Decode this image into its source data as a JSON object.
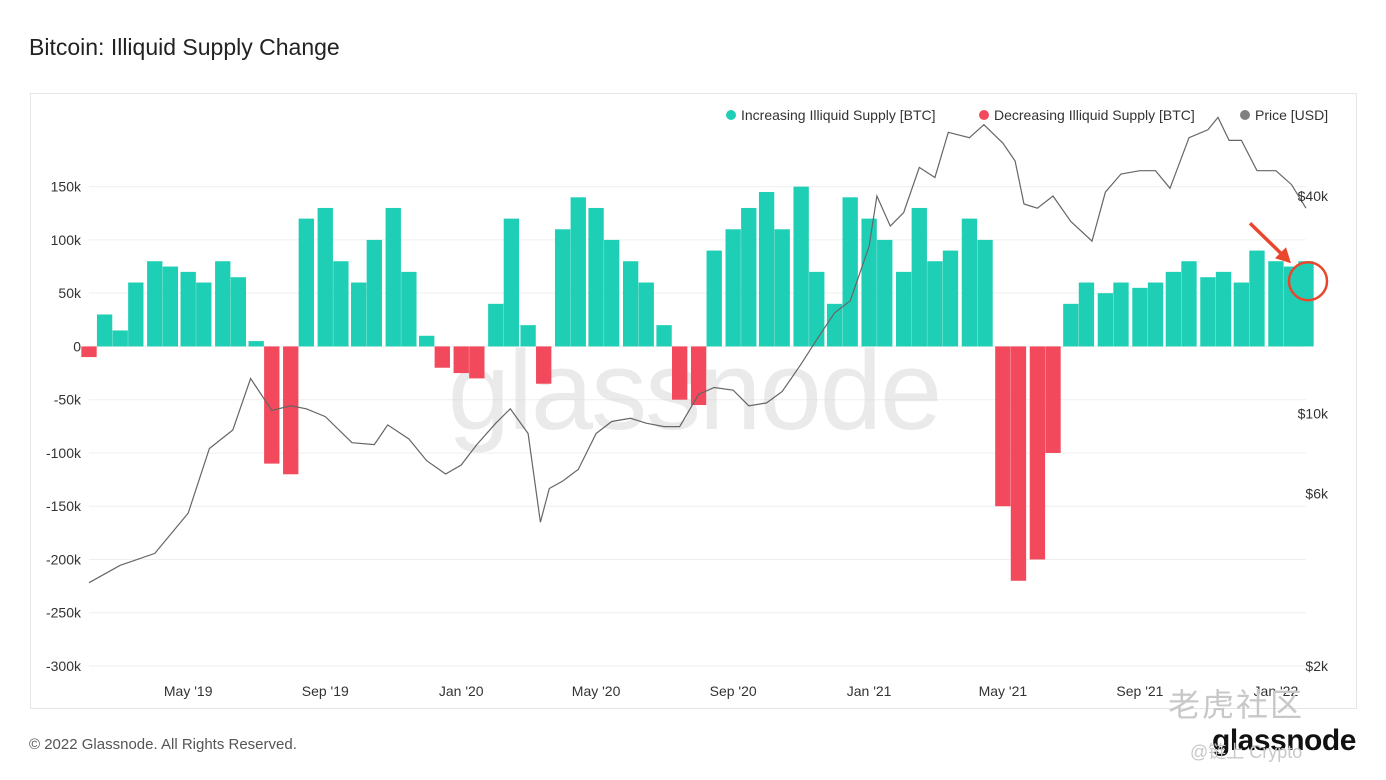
{
  "title": "Bitcoin: Illiquid Supply Change",
  "footer": "© 2022 Glassnode. All Rights Reserved.",
  "brand": "glassnode",
  "watermark": {
    "text": "glassnode",
    "cn_text": "老虎社区",
    "handle": "@链上 Crypto"
  },
  "colors": {
    "increase": "#1fcfb5",
    "decrease": "#f2495c",
    "price": "#666666",
    "annotation": "#e8472e"
  },
  "chart_data": {
    "type": "bar",
    "title": "Bitcoin: Illiquid Supply Change",
    "legend": {
      "placement": "top-right",
      "items": [
        {
          "label": "Increasing Illiquid Supply [BTC]",
          "color": "#1fcfb5"
        },
        {
          "label": "Decreasing Illiquid Supply [BTC]",
          "color": "#f2495c"
        },
        {
          "label": "Price [USD]",
          "color": "#808080"
        }
      ]
    },
    "x_ticks": [
      "May '19",
      "Sep '19",
      "Jan '20",
      "May '20",
      "Sep '20",
      "Jan '21",
      "May '21",
      "Sep '21",
      "Jan '22"
    ],
    "x_range": [
      "2019-02-01",
      "2022-01-28"
    ],
    "y_left": {
      "ticks": [
        "150k",
        "100k",
        "50k",
        "0",
        "-50k",
        "-100k",
        "-150k",
        "-200k",
        "-250k",
        "-300k"
      ],
      "tick_values": [
        150000,
        100000,
        50000,
        0,
        -50000,
        -100000,
        -150000,
        -200000,
        -250000,
        -300000
      ],
      "range": [
        -300000,
        160000
      ]
    },
    "y_right": {
      "ticks": [
        "$40k",
        "$10k",
        "$6k",
        "$2k"
      ],
      "tick_values": [
        40000,
        10000,
        6000,
        2000
      ],
      "scale": "log",
      "range": [
        2000,
        55000
      ]
    },
    "grid": true,
    "supply_change_series": {
      "name": "Illiquid Supply Change",
      "x": [
        "2019-02-01",
        "2019-02-15",
        "2019-03-01",
        "2019-03-15",
        "2019-04-01",
        "2019-04-15",
        "2019-05-01",
        "2019-05-15",
        "2019-06-01",
        "2019-06-15",
        "2019-07-01",
        "2019-07-15",
        "2019-08-01",
        "2019-08-15",
        "2019-09-01",
        "2019-09-15",
        "2019-10-01",
        "2019-10-15",
        "2019-11-01",
        "2019-11-15",
        "2019-12-01",
        "2019-12-15",
        "2020-01-01",
        "2020-01-15",
        "2020-02-01",
        "2020-02-15",
        "2020-03-01",
        "2020-03-15",
        "2020-04-01",
        "2020-04-15",
        "2020-05-01",
        "2020-05-15",
        "2020-06-01",
        "2020-06-15",
        "2020-07-01",
        "2020-07-15",
        "2020-08-01",
        "2020-08-15",
        "2020-09-01",
        "2020-09-15",
        "2020-10-01",
        "2020-10-15",
        "2020-11-01",
        "2020-11-15",
        "2020-12-01",
        "2020-12-15",
        "2021-01-01",
        "2021-01-15",
        "2021-02-01",
        "2021-02-15",
        "2021-03-01",
        "2021-03-15",
        "2021-04-01",
        "2021-04-15",
        "2021-05-01",
        "2021-05-15",
        "2021-06-01",
        "2021-06-15",
        "2021-07-01",
        "2021-07-15",
        "2021-08-01",
        "2021-08-15",
        "2021-09-01",
        "2021-09-15",
        "2021-10-01",
        "2021-10-15",
        "2021-11-01",
        "2021-11-15",
        "2021-12-01",
        "2021-12-15",
        "2022-01-01",
        "2022-01-15",
        "2022-01-28"
      ],
      "values": [
        -10000,
        30000,
        15000,
        60000,
        80000,
        75000,
        70000,
        60000,
        80000,
        65000,
        5000,
        -110000,
        -120000,
        120000,
        130000,
        80000,
        60000,
        100000,
        130000,
        70000,
        10000,
        -20000,
        -25000,
        -30000,
        40000,
        120000,
        20000,
        -35000,
        110000,
        140000,
        130000,
        100000,
        80000,
        60000,
        20000,
        -50000,
        -55000,
        90000,
        110000,
        130000,
        145000,
        110000,
        150000,
        70000,
        40000,
        140000,
        120000,
        100000,
        70000,
        130000,
        80000,
        90000,
        120000,
        100000,
        -150000,
        -220000,
        -200000,
        -100000,
        40000,
        60000,
        50000,
        60000,
        55000,
        60000,
        70000,
        80000,
        65000,
        70000,
        60000,
        90000,
        80000,
        75000,
        80000
      ]
    },
    "price_series": {
      "name": "Price [USD]",
      "x": [
        "2019-02-01",
        "2019-03-01",
        "2019-04-01",
        "2019-05-01",
        "2019-05-20",
        "2019-06-10",
        "2019-06-26",
        "2019-07-15",
        "2019-08-01",
        "2019-08-15",
        "2019-09-01",
        "2019-09-25",
        "2019-10-15",
        "2019-10-27",
        "2019-11-15",
        "2019-12-01",
        "2019-12-18",
        "2020-01-01",
        "2020-01-15",
        "2020-02-01",
        "2020-02-14",
        "2020-03-01",
        "2020-03-12",
        "2020-03-20",
        "2020-04-01",
        "2020-04-15",
        "2020-05-01",
        "2020-05-15",
        "2020-06-01",
        "2020-06-15",
        "2020-07-01",
        "2020-07-15",
        "2020-08-01",
        "2020-08-15",
        "2020-09-01",
        "2020-09-15",
        "2020-10-01",
        "2020-10-15",
        "2020-11-01",
        "2020-11-15",
        "2020-12-01",
        "2020-12-15",
        "2021-01-01",
        "2021-01-08",
        "2021-01-20",
        "2021-02-01",
        "2021-02-15",
        "2021-03-01",
        "2021-03-13",
        "2021-04-01",
        "2021-04-14",
        "2021-05-01",
        "2021-05-12",
        "2021-05-20",
        "2021-06-01",
        "2021-06-15",
        "2021-07-01",
        "2021-07-20",
        "2021-08-01",
        "2021-08-15",
        "2021-09-01",
        "2021-09-15",
        "2021-09-28",
        "2021-10-15",
        "2021-11-01",
        "2021-11-10",
        "2021-11-20",
        "2021-12-01",
        "2021-12-15",
        "2022-01-01",
        "2022-01-15",
        "2022-01-28"
      ],
      "values": [
        3400,
        3800,
        4100,
        5300,
        8000,
        9000,
        12500,
        10200,
        10500,
        10300,
        9800,
        8300,
        8200,
        9300,
        8500,
        7400,
        6800,
        7200,
        8200,
        9400,
        10300,
        8800,
        5000,
        6200,
        6500,
        7000,
        8800,
        9500,
        9700,
        9400,
        9200,
        9200,
        11300,
        11800,
        11600,
        10500,
        10700,
        11500,
        13700,
        16000,
        19000,
        20500,
        29000,
        40000,
        33000,
        36000,
        48000,
        45000,
        60000,
        58000,
        63000,
        56000,
        50000,
        38000,
        37000,
        40000,
        34000,
        30000,
        41000,
        46000,
        47000,
        47000,
        42000,
        58000,
        61000,
        66000,
        57000,
        57000,
        47000,
        47000,
        43000,
        37000
      ]
    },
    "annotation": {
      "type": "circle-and-arrow",
      "target": "latest bar (2022-01-28)"
    }
  }
}
